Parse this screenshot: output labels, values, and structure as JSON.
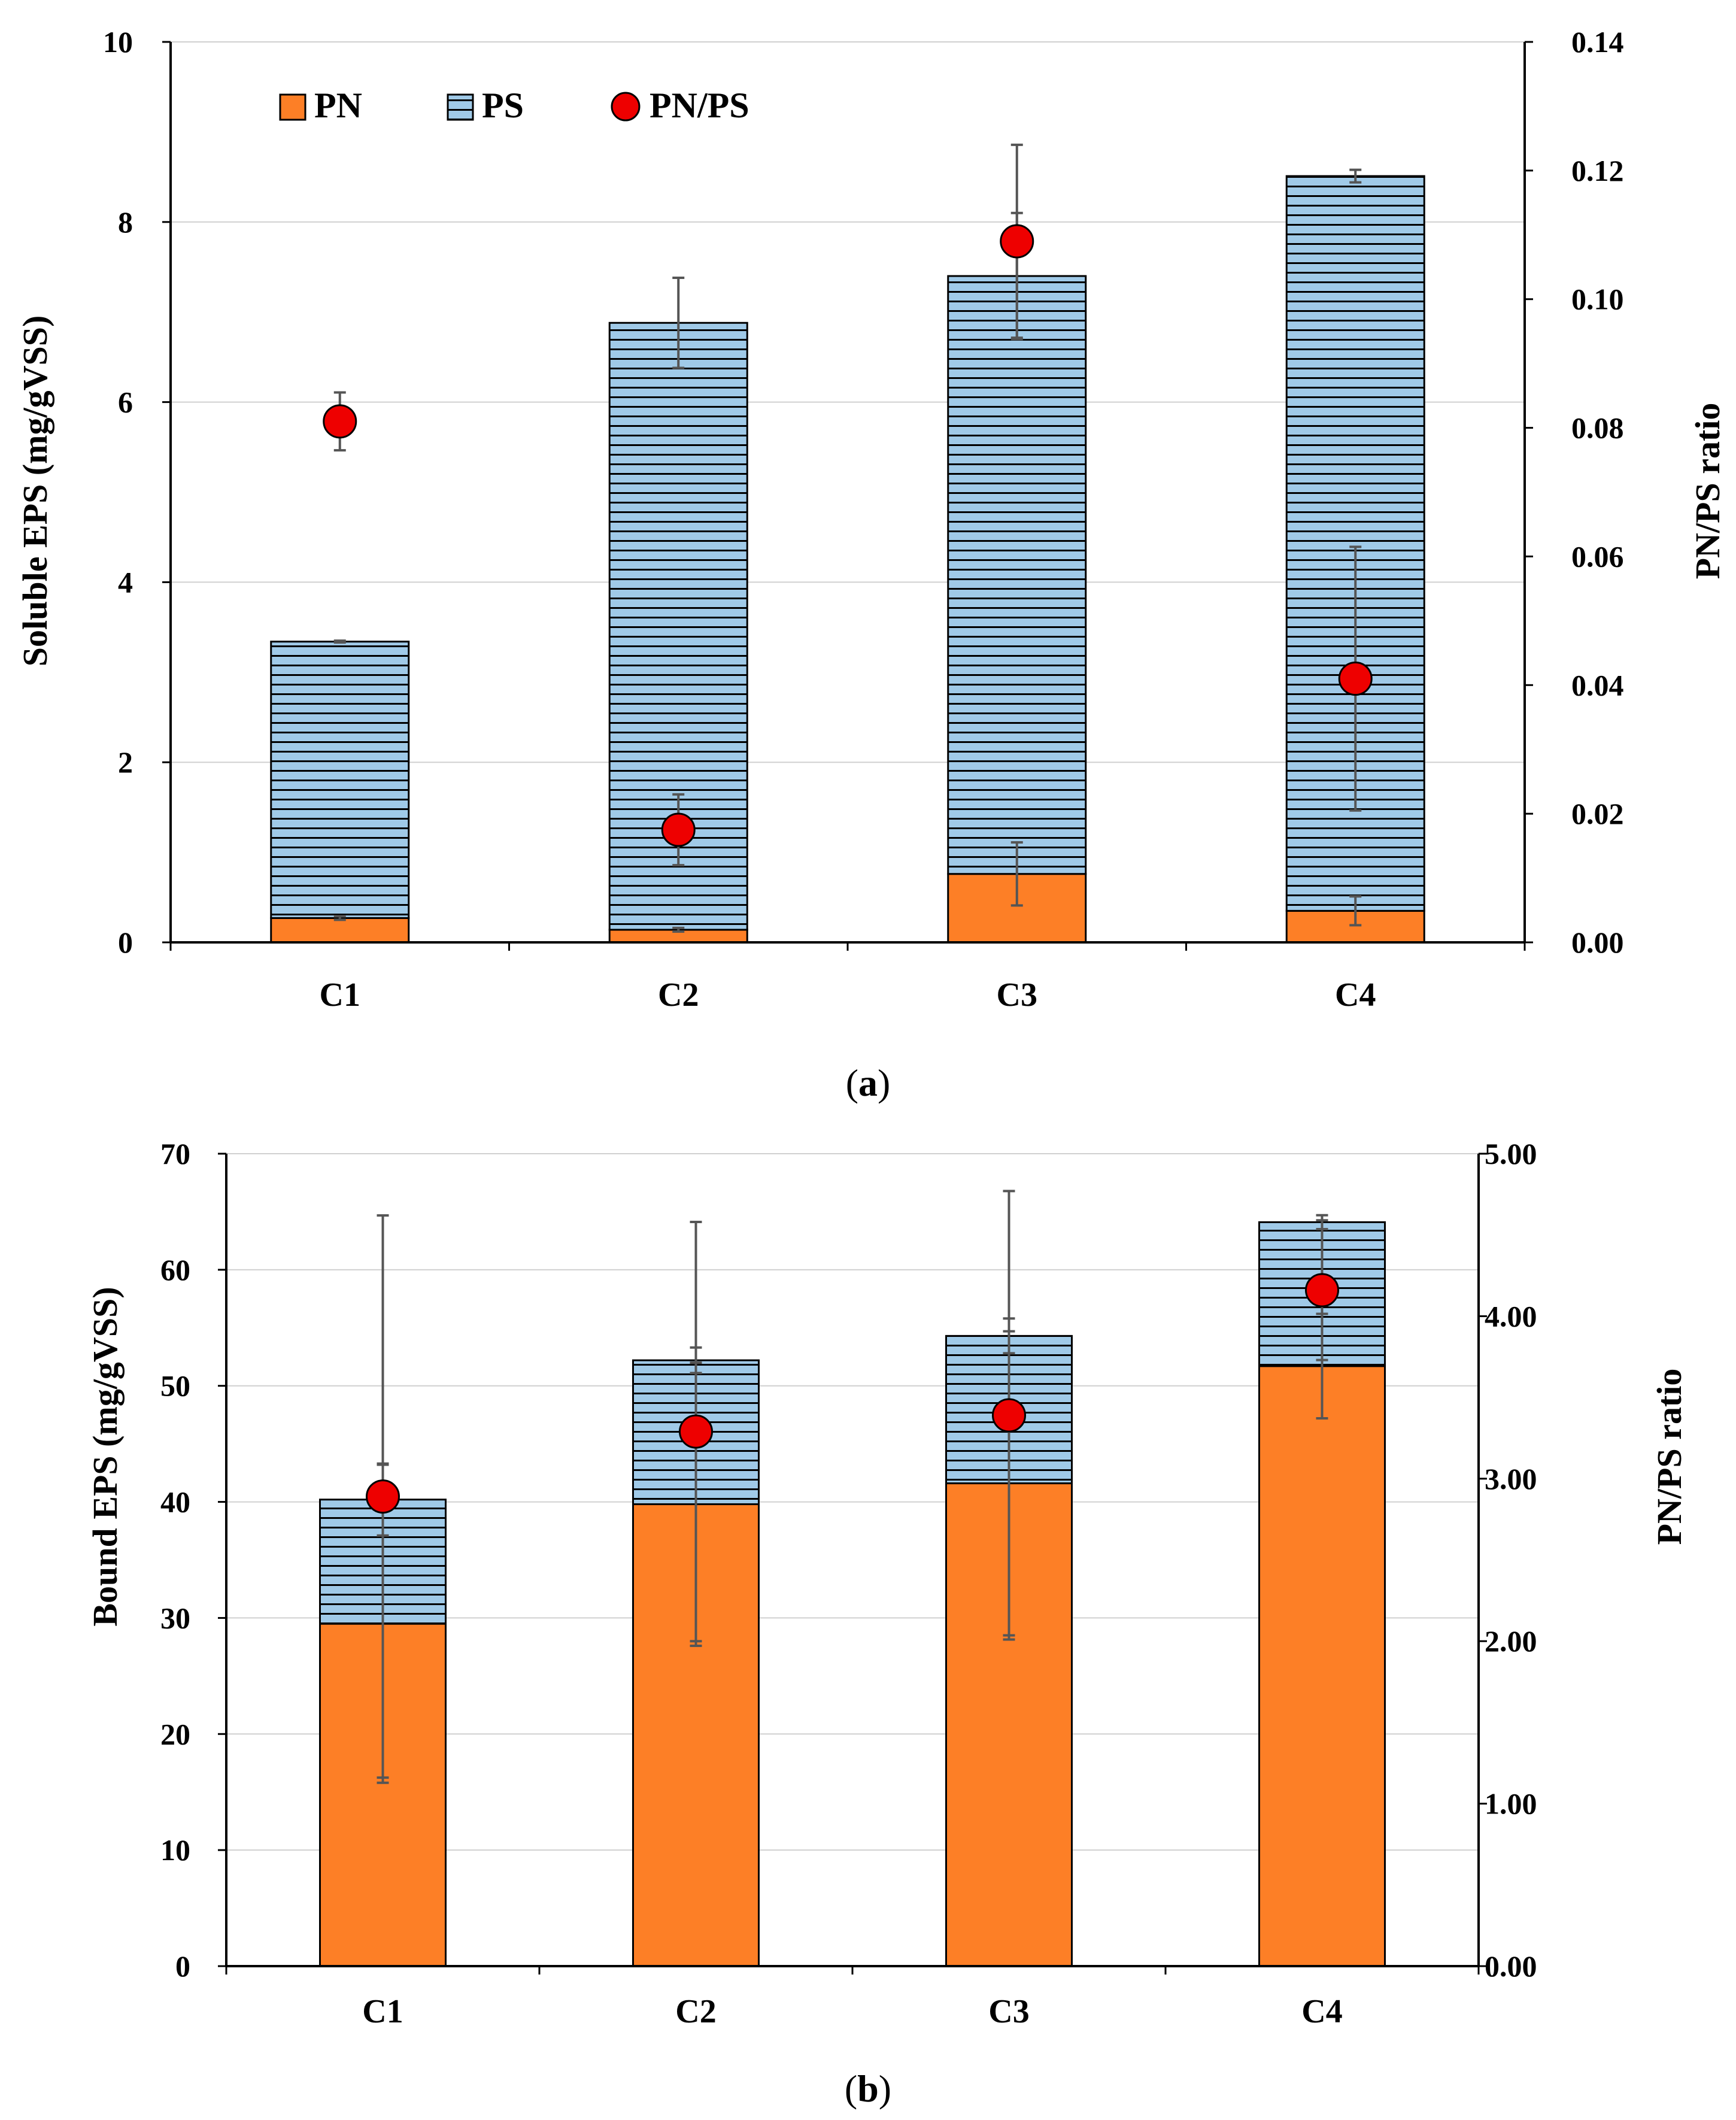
{
  "colors": {
    "pn": "#fd7f26",
    "ps": "#a0cae8",
    "ps_lines": "#000000",
    "ratio": "#ee0000",
    "grid": "#d0d0d0",
    "error": "#555555"
  },
  "legend": {
    "pn": "PN",
    "ps": "PS",
    "ratio": "PN/PS"
  },
  "chart_data": [
    {
      "type": "bar",
      "stacked": true,
      "panel": "a",
      "caption": {
        "open": "(",
        "letter": "a",
        "close": ")"
      },
      "categories": [
        "C1",
        "C2",
        "C3",
        "C4"
      ],
      "ylabel": "Soluble EPS (mg/gVSS)",
      "y2label": "PN/PS ratio",
      "ylim": [
        0,
        10
      ],
      "y_ticks": [
        "0",
        "2",
        "4",
        "6",
        "8",
        "10"
      ],
      "y2lim": [
        0,
        0.14
      ],
      "y2_ticks": [
        "0.00",
        "0.02",
        "0.04",
        "0.06",
        "0.08",
        "0.10",
        "0.12",
        "0.14"
      ],
      "grid": true,
      "legend_position": "top-left",
      "series": [
        {
          "name": "PN",
          "values": [
            0.27,
            0.14,
            0.76,
            0.35
          ],
          "errors": [
            0.02,
            0.02,
            0.35,
            0.16
          ]
        },
        {
          "name": "PS",
          "values": [
            3.07,
            6.74,
            6.64,
            8.16
          ],
          "errors": [
            0.01,
            0.5,
            0.7,
            0.07
          ]
        }
      ],
      "ratio": {
        "name": "PN/PS",
        "values": [
          0.081,
          0.0175,
          0.109,
          0.041
        ],
        "errors": [
          0.0045,
          0.0055,
          0.015,
          0.0205
        ]
      }
    },
    {
      "type": "bar",
      "stacked": true,
      "panel": "b",
      "caption": {
        "open": "(",
        "letter": "b",
        "close": ")"
      },
      "categories": [
        "C1",
        "C2",
        "C3",
        "C4"
      ],
      "ylabel": "Bound EPS (mg/gVSS)",
      "y2label": "PN/PS ratio",
      "ylim": [
        0,
        70
      ],
      "y_ticks": [
        "0",
        "10",
        "20",
        "30",
        "40",
        "50",
        "60",
        "70"
      ],
      "y2lim": [
        0,
        5
      ],
      "y2_ticks": [
        "0.00",
        "1.00",
        "2.00",
        "3.00",
        "4.00",
        "5.00"
      ],
      "grid": true,
      "series": [
        {
          "name": "PN",
          "values": [
            29.5,
            39.8,
            41.6,
            51.7
          ],
          "errors": [
            13.7,
            12.2,
            13.1,
            4.5
          ]
        },
        {
          "name": "PS",
          "values": [
            10.7,
            12.4,
            12.7,
            12.4
          ],
          "errors": [
            3.1,
            1.1,
            1.5,
            0.6
          ]
        }
      ],
      "ratio": {
        "name": "PN/PS",
        "values": [
          2.89,
          3.29,
          3.39,
          4.16
        ],
        "errors": [
          1.73,
          1.29,
          1.38,
          0.43
        ]
      }
    }
  ]
}
